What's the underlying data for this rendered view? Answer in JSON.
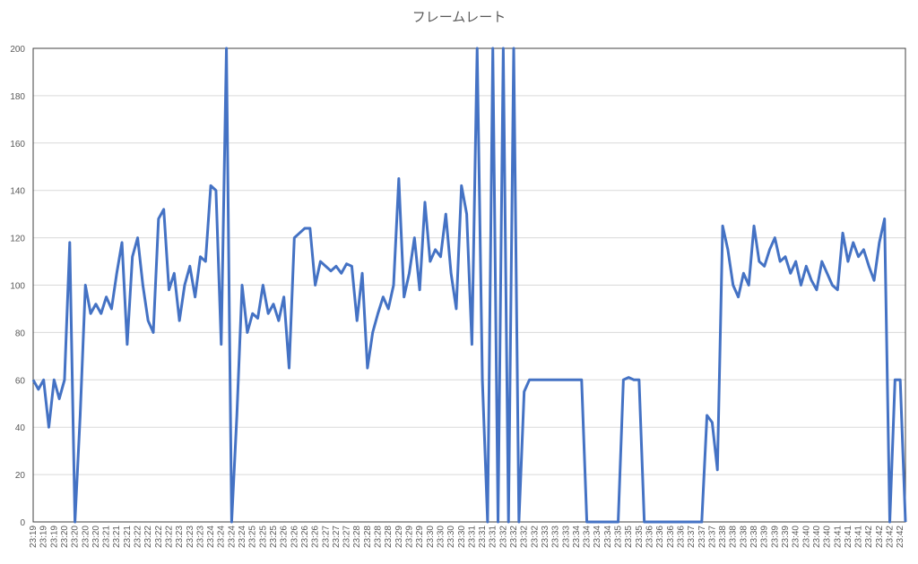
{
  "chart_data": {
    "type": "line",
    "title": "フレームレート",
    "categories": [
      "23:19",
      null,
      "23:19",
      null,
      "23:19",
      null,
      "23:20",
      null,
      "23:20",
      null,
      "23:20",
      null,
      "23:20",
      null,
      "23:21",
      null,
      "23:21",
      null,
      "23:21",
      null,
      "23:22",
      null,
      "23:22",
      null,
      "23:22",
      null,
      "23:22",
      null,
      "23:23",
      null,
      "23:23",
      null,
      "23:23",
      null,
      "23:24",
      null,
      "23:24",
      null,
      "23:24",
      null,
      "23:24",
      null,
      "23:25",
      null,
      "23:25",
      null,
      "23:25",
      null,
      "23:26",
      null,
      "23:26",
      null,
      "23:26",
      null,
      "23:26",
      null,
      "23:27",
      null,
      "23:27",
      null,
      "23:27",
      null,
      "23:28",
      null,
      "23:28",
      null,
      "23:28",
      null,
      "23:28",
      null,
      "23:29",
      null,
      "23:29",
      null,
      "23:29",
      null,
      "23:30",
      null,
      "23:30",
      null,
      "23:30",
      null,
      "23:30",
      null,
      "23:31",
      null,
      "23:31",
      null,
      "23:31",
      null,
      "23:32",
      null,
      "23:32",
      null,
      "23:32",
      null,
      "23:32",
      null,
      "23:33",
      null,
      "23:33",
      null,
      "23:33",
      null,
      "23:34",
      null,
      "23:34",
      null,
      "23:34",
      null,
      "23:34",
      null,
      "23:35",
      null,
      "23:35",
      null,
      "23:35",
      null,
      "23:36",
      null,
      "23:36",
      null,
      "23:36",
      null,
      "23:36",
      null,
      "23:37",
      null,
      "23:37",
      null,
      "23:37",
      null,
      "23:38",
      null,
      "23:38",
      null,
      "23:38",
      null,
      "23:38",
      null,
      "23:39",
      null,
      "23:39",
      null,
      "23:39",
      null,
      "23:40",
      null,
      "23:40",
      null,
      "23:40",
      null,
      "23:40",
      null,
      "23:41",
      null,
      "23:41",
      null,
      "23:41",
      null,
      "23:42",
      null,
      "23:42",
      null,
      "23:42",
      null,
      "23:42",
      null
    ],
    "series": [
      {
        "color": "#4472c4",
        "values": [
          60,
          56,
          60,
          40,
          60,
          52,
          60,
          118,
          0,
          45,
          100,
          88,
          92,
          88,
          95,
          90,
          105,
          118,
          75,
          112,
          120,
          100,
          85,
          80,
          128,
          132,
          98,
          105,
          85,
          100,
          108,
          95,
          112,
          110,
          142,
          140,
          75,
          200,
          0,
          45,
          100,
          80,
          88,
          86,
          100,
          88,
          92,
          85,
          95,
          65,
          120,
          122,
          124,
          124,
          100,
          110,
          108,
          106,
          108,
          105,
          109,
          108,
          85,
          105,
          65,
          80,
          88,
          95,
          90,
          100,
          145,
          95,
          105,
          120,
          98,
          135,
          110,
          115,
          112,
          130,
          105,
          90,
          142,
          130,
          75,
          200,
          60,
          0,
          200,
          0,
          200,
          0,
          200,
          0,
          55,
          60,
          60,
          60,
          60,
          60,
          60,
          60,
          60,
          60,
          60,
          60,
          0,
          0,
          0,
          0,
          0,
          0,
          0,
          60,
          61,
          60,
          60,
          0,
          0,
          0,
          0,
          0,
          0,
          0,
          0,
          0,
          0,
          0,
          0,
          45,
          42,
          22,
          125,
          115,
          100,
          95,
          105,
          100,
          125,
          110,
          108,
          115,
          120,
          110,
          112,
          105,
          110,
          100,
          108,
          102,
          98,
          110,
          105,
          100,
          98,
          122,
          110,
          118,
          112,
          115,
          108,
          102,
          118,
          128,
          0,
          60,
          60,
          0
        ]
      }
    ],
    "ylim": [
      0,
      200
    ],
    "yticks": [
      0,
      20,
      40,
      60,
      80,
      100,
      120,
      140,
      160,
      180,
      200
    ],
    "grid": true
  }
}
